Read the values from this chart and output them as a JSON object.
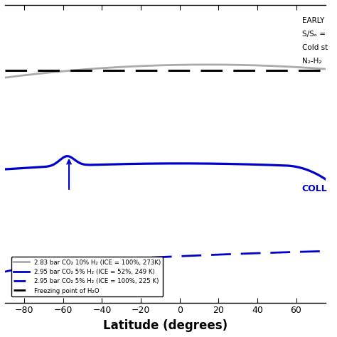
{
  "xlim": [
    -90,
    75
  ],
  "ylim": [
    213,
    290
  ],
  "xticks": [
    -80,
    -60,
    -40,
    -20,
    0,
    20,
    40,
    60
  ],
  "xlabel": "Latitude (degrees)",
  "freezing_T": 273.15,
  "gray_color": "#aaaaaa",
  "blue_color": "#0000cc",
  "black_color": "#000000",
  "legend_labels": [
    "2.83 bar CO₂ 10% H₂ (ICE = 100%, 273K)",
    "2.95 bar CO₂ 5% H₂ (ICE = 52%, 249 K)",
    "2.95 bar CO₂ 5% H₂ (ICE = 100%, 225 K)",
    "Freezing point of H₂O"
  ],
  "annot_right_texts": [
    "EARLY",
    "S/Sₒ =",
    "Cold st",
    "N₂-H₂"
  ],
  "annot_blue_text": "COLL",
  "arrow_lat": -57
}
